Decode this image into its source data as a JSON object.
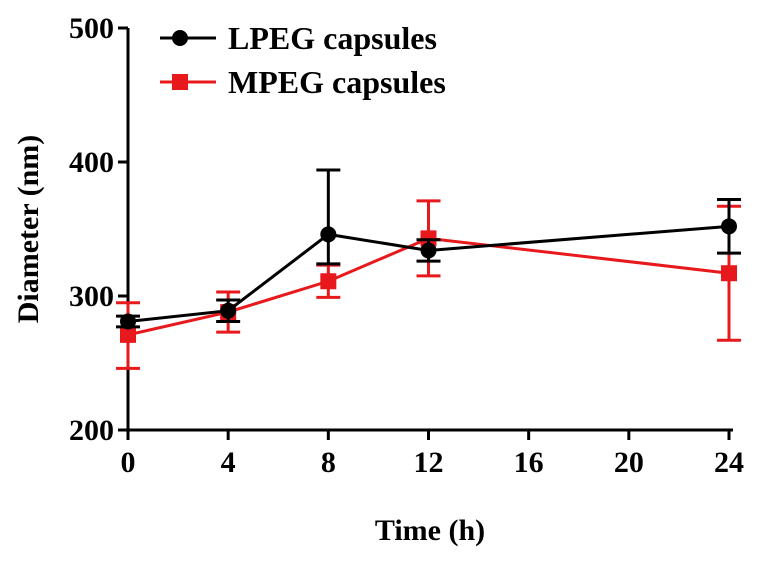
{
  "chart_data": {
    "type": "line",
    "title": "",
    "xlabel": "Time (h)",
    "ylabel": "Diameter (nm)",
    "xlim": [
      0,
      24
    ],
    "ylim": [
      200,
      500
    ],
    "xticks": [
      0,
      4,
      8,
      12,
      16,
      20,
      24
    ],
    "yticks": [
      200,
      300,
      400,
      500
    ],
    "grid": false,
    "legend_position": "top-left",
    "series": [
      {
        "name": "LPEG capsules",
        "color": "#000000",
        "marker": "circle",
        "x": [
          0,
          4,
          8,
          12,
          24
        ],
        "y": [
          281,
          289,
          346,
          334,
          352
        ],
        "err_low": [
          4,
          8,
          22,
          8,
          20
        ],
        "err_high": [
          4,
          8,
          48,
          8,
          20
        ]
      },
      {
        "name": "MPEG capsules",
        "color": "#e8191d",
        "marker": "square",
        "x": [
          0,
          4,
          8,
          12,
          24
        ],
        "y": [
          271,
          288,
          311,
          343,
          317
        ],
        "err_low": [
          25,
          15,
          12,
          28,
          50
        ],
        "err_high": [
          24,
          15,
          12,
          28,
          50
        ]
      }
    ]
  }
}
